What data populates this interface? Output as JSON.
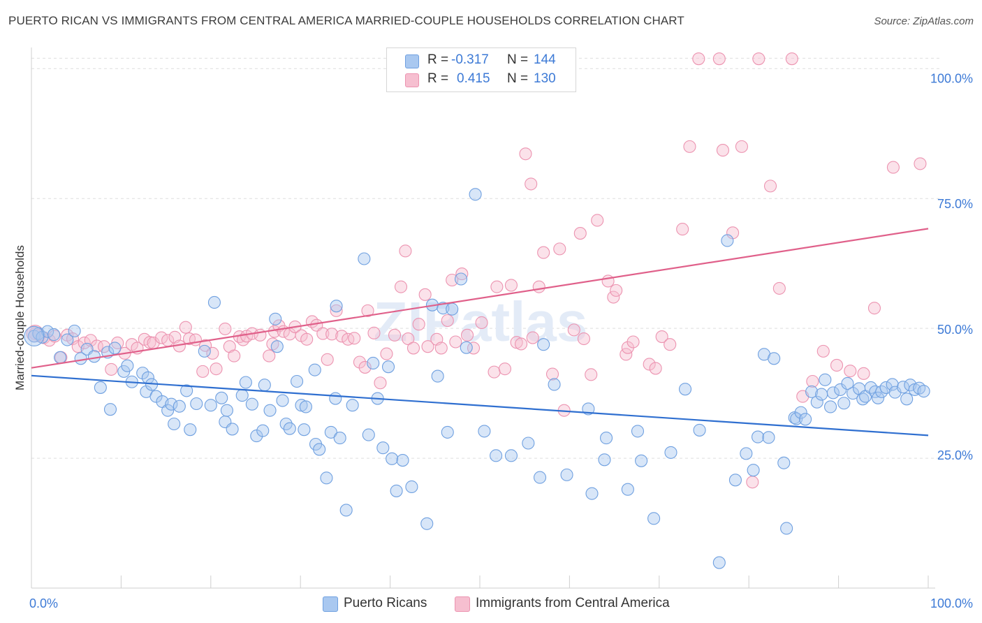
{
  "title": "PUERTO RICAN VS IMMIGRANTS FROM CENTRAL AMERICA MARRIED-COUPLE HOUSEHOLDS CORRELATION CHART",
  "source": "Source: ZipAtlas.com",
  "watermark": "ZIPatlas",
  "colors": {
    "blue_fill": "#a9c8f0",
    "blue_stroke": "#6fa0e0",
    "blue_line": "#2f6fd0",
    "pink_fill": "#f6bfd0",
    "pink_stroke": "#ec93b0",
    "pink_line": "#e0608a",
    "accent_text": "#3d7ad6"
  },
  "legend": {
    "rows": [
      {
        "r_label": "R =",
        "r_value": "-0.317",
        "n_label": "N =",
        "n_value": "144"
      },
      {
        "r_label": "R =",
        "r_value": "0.415",
        "n_label": "N =",
        "n_value": "130"
      }
    ]
  },
  "bottom_legend": {
    "series1": "Puerto Ricans",
    "series2": "Immigrants from Central America"
  },
  "chart_data": {
    "type": "scatter",
    "title": "PUERTO RICAN VS IMMIGRANTS FROM CENTRAL AMERICA MARRIED-COUPLE HOUSEHOLDS CORRELATION CHART",
    "xlabel": "",
    "ylabel": "Married-couple Households",
    "xlim": [
      0,
      100
    ],
    "ylim": [
      0,
      103
    ],
    "x_tick_labels": [
      "0.0%",
      "100.0%"
    ],
    "y_tick_labels": [
      {
        "value": 25,
        "label": "25.0%"
      },
      {
        "value": 50,
        "label": "50.0%"
      },
      {
        "value": 75,
        "label": "75.0%"
      },
      {
        "value": 100,
        "label": "100.0%"
      }
    ],
    "series": [
      {
        "name": "Puerto Ricans",
        "color": "blue",
        "R": -0.317,
        "N": 144,
        "trend": {
          "x0": 0,
          "y0": 40.9,
          "x1": 100,
          "y1": 29.4
        },
        "points": [
          [
            0.3,
            48.5
          ],
          [
            0.8,
            49
          ],
          [
            1.2,
            48.3
          ],
          [
            1.8,
            49.4
          ],
          [
            2.5,
            48.8
          ],
          [
            3.2,
            44.4
          ],
          [
            4,
            47.8
          ],
          [
            4.8,
            49.5
          ],
          [
            5.5,
            44.2
          ],
          [
            6.2,
            46
          ],
          [
            7,
            44.6
          ],
          [
            7.7,
            38.6
          ],
          [
            8.5,
            45.4
          ],
          [
            9.3,
            46.2
          ],
          [
            8.8,
            34.4
          ],
          [
            10.3,
            41.7
          ],
          [
            10.7,
            42.8
          ],
          [
            11.2,
            39.7
          ],
          [
            12.4,
            41.4
          ],
          [
            12.8,
            37.8
          ],
          [
            13,
            40.5
          ],
          [
            13.4,
            39.2
          ],
          [
            13.9,
            36.9
          ],
          [
            14.6,
            35.9
          ],
          [
            15.2,
            34.2
          ],
          [
            15.6,
            35.4
          ],
          [
            15.9,
            31.6
          ],
          [
            16.5,
            35
          ],
          [
            17.3,
            38
          ],
          [
            17.7,
            30.5
          ],
          [
            18.4,
            35.5
          ],
          [
            19.3,
            45.6
          ],
          [
            20,
            35.2
          ],
          [
            20.4,
            55
          ],
          [
            21.2,
            36.6
          ],
          [
            21.6,
            32
          ],
          [
            21.8,
            34.2
          ],
          [
            22.4,
            30.6
          ],
          [
            23.5,
            37.1
          ],
          [
            23.9,
            39.6
          ],
          [
            24.6,
            35.4
          ],
          [
            25.1,
            29.3
          ],
          [
            25.8,
            30.3
          ],
          [
            26,
            39.1
          ],
          [
            26.6,
            34.2
          ],
          [
            27.2,
            51.8
          ],
          [
            27.4,
            46.5
          ],
          [
            28,
            36.1
          ],
          [
            28.4,
            31.6
          ],
          [
            28.8,
            30.7
          ],
          [
            29.6,
            39.8
          ],
          [
            30.1,
            35.2
          ],
          [
            30.4,
            30.5
          ],
          [
            30.6,
            34.9
          ],
          [
            31.6,
            42
          ],
          [
            31.7,
            27.7
          ],
          [
            32.1,
            26.7
          ],
          [
            32.9,
            21.2
          ],
          [
            33.4,
            30
          ],
          [
            33.9,
            36.5
          ],
          [
            34,
            54.3
          ],
          [
            34.4,
            28.9
          ],
          [
            35.1,
            15
          ],
          [
            35.8,
            35.2
          ],
          [
            37.1,
            63.4
          ],
          [
            37.6,
            29.5
          ],
          [
            38.1,
            43.3
          ],
          [
            38.6,
            36.5
          ],
          [
            39.2,
            27
          ],
          [
            39.8,
            42.6
          ],
          [
            40.2,
            24.9
          ],
          [
            40.7,
            18.7
          ],
          [
            41.4,
            24.6
          ],
          [
            42.4,
            19.5
          ],
          [
            44.1,
            12.4
          ],
          [
            44.7,
            54.5
          ],
          [
            45.3,
            40.8
          ],
          [
            45.9,
            53.9
          ],
          [
            46.4,
            30
          ],
          [
            46.9,
            53.7
          ],
          [
            47.9,
            59.5
          ],
          [
            48.5,
            46.3
          ],
          [
            49.5,
            75.8
          ],
          [
            50.5,
            30.2
          ],
          [
            51.8,
            25.5
          ],
          [
            53.5,
            25.5
          ],
          [
            55.4,
            27.9
          ],
          [
            56.7,
            21.3
          ],
          [
            57.1,
            46.9
          ],
          [
            58.3,
            39.2
          ],
          [
            59.7,
            21.8
          ],
          [
            62.1,
            34.5
          ],
          [
            62.5,
            18.2
          ],
          [
            63.9,
            24.7
          ],
          [
            64.1,
            28.9
          ],
          [
            66.5,
            19
          ],
          [
            67.6,
            30.2
          ],
          [
            68,
            24.5
          ],
          [
            69.4,
            13.4
          ],
          [
            71.3,
            26.1
          ],
          [
            72.9,
            38.3
          ],
          [
            74.5,
            30.4
          ],
          [
            76.7,
            4.9
          ],
          [
            77.6,
            66.9
          ],
          [
            78.5,
            20.8
          ],
          [
            79.7,
            25.9
          ],
          [
            80.5,
            22.7
          ],
          [
            81,
            29.1
          ],
          [
            81.7,
            45
          ],
          [
            82.2,
            29
          ],
          [
            82.8,
            44.2
          ],
          [
            83.9,
            24.1
          ],
          [
            84.2,
            11.5
          ],
          [
            85.1,
            32.8
          ],
          [
            85.3,
            32.6
          ],
          [
            85.8,
            33.8
          ],
          [
            86.3,
            32.5
          ],
          [
            87,
            37.8
          ],
          [
            87.6,
            35.8
          ],
          [
            88.1,
            37.3
          ],
          [
            88.5,
            40.1
          ],
          [
            89.1,
            34.9
          ],
          [
            89.4,
            37.6
          ],
          [
            90.2,
            38.2
          ],
          [
            90.6,
            35.6
          ],
          [
            91,
            39.4
          ],
          [
            91.6,
            37.5
          ],
          [
            92.3,
            38.4
          ],
          [
            92.7,
            36.4
          ],
          [
            93,
            36.9
          ],
          [
            93.6,
            38.6
          ],
          [
            94.1,
            37.8
          ],
          [
            94.4,
            36.6
          ],
          [
            94.8,
            37.8
          ],
          [
            95.3,
            38.6
          ],
          [
            96,
            39.2
          ],
          [
            96.3,
            37.7
          ],
          [
            97.2,
            38.7
          ],
          [
            97.6,
            36.4
          ],
          [
            98,
            39.1
          ],
          [
            98.5,
            38.2
          ],
          [
            99,
            38.5
          ],
          [
            99.5,
            37.9
          ]
        ]
      },
      {
        "name": "Immigrants from Central America",
        "color": "pink",
        "R": 0.415,
        "N": 130,
        "trend": {
          "x0": 0,
          "y0": 42.4,
          "x1": 100,
          "y1": 69.2
        },
        "points": [
          [
            0.4,
            49
          ],
          [
            0.9,
            48.7
          ],
          [
            1.4,
            48.2
          ],
          [
            2,
            47.7
          ],
          [
            2.6,
            48.5
          ],
          [
            3.3,
            44.4
          ],
          [
            4,
            48.7
          ],
          [
            4.6,
            48
          ],
          [
            5.2,
            46.5
          ],
          [
            5.9,
            47.2
          ],
          [
            6.6,
            47.7
          ],
          [
            7.3,
            46.6
          ],
          [
            8.1,
            46.5
          ],
          [
            8.9,
            42.1
          ],
          [
            9.6,
            47.2
          ],
          [
            10.4,
            45.2
          ],
          [
            11.2,
            46.9
          ],
          [
            11.8,
            46.2
          ],
          [
            12.6,
            47.9
          ],
          [
            13.2,
            47.3
          ],
          [
            13.6,
            47.2
          ],
          [
            14.5,
            48.2
          ],
          [
            15.2,
            47.7
          ],
          [
            16,
            48.3
          ],
          [
            16.5,
            46.6
          ],
          [
            17.2,
            50.2
          ],
          [
            17.6,
            48
          ],
          [
            18.3,
            47.8
          ],
          [
            19.1,
            41.7
          ],
          [
            19.4,
            46.7
          ],
          [
            20.2,
            45.2
          ],
          [
            20.6,
            42.2
          ],
          [
            21.6,
            49.9
          ],
          [
            22.1,
            46.5
          ],
          [
            22.6,
            44.7
          ],
          [
            23.2,
            48.4
          ],
          [
            23.6,
            47.8
          ],
          [
            24,
            48.5
          ],
          [
            24.6,
            49
          ],
          [
            25.5,
            48.7
          ],
          [
            26.5,
            44.7
          ],
          [
            26.9,
            47
          ],
          [
            27.1,
            49.4
          ],
          [
            27.6,
            50.5
          ],
          [
            28.1,
            49.4
          ],
          [
            28.8,
            48.9
          ],
          [
            29.4,
            50.3
          ],
          [
            30.1,
            48.6
          ],
          [
            30.7,
            47.9
          ],
          [
            31.3,
            51.3
          ],
          [
            31.8,
            50.6
          ],
          [
            32.5,
            49
          ],
          [
            33,
            44
          ],
          [
            33.5,
            48.9
          ],
          [
            34,
            53.4
          ],
          [
            34.6,
            48.5
          ],
          [
            35.3,
            47.9
          ],
          [
            36,
            48.1
          ],
          [
            36.6,
            43.5
          ],
          [
            37.2,
            42.5
          ],
          [
            37.5,
            53.4
          ],
          [
            38.2,
            49.1
          ],
          [
            38.9,
            39.5
          ],
          [
            39.6,
            45.1
          ],
          [
            40.5,
            48.7
          ],
          [
            41.2,
            58
          ],
          [
            41.7,
            64.9
          ],
          [
            42,
            48
          ],
          [
            42.6,
            46.2
          ],
          [
            43.2,
            50.8
          ],
          [
            43.9,
            56.5
          ],
          [
            44.2,
            46.5
          ],
          [
            45.2,
            47.9
          ],
          [
            45.7,
            46.2
          ],
          [
            46.4,
            51.5
          ],
          [
            46.9,
            59.3
          ],
          [
            47.3,
            47.4
          ],
          [
            48,
            60.5
          ],
          [
            48.6,
            48.7
          ],
          [
            49.3,
            46.2
          ],
          [
            50.2,
            51.1
          ],
          [
            51.6,
            41.6
          ],
          [
            51.9,
            58
          ],
          [
            52.8,
            42.2
          ],
          [
            53.5,
            58.3
          ],
          [
            54.1,
            47.3
          ],
          [
            54.6,
            47
          ],
          [
            55.1,
            83.6
          ],
          [
            55.7,
            77.8
          ],
          [
            55.9,
            48.2
          ],
          [
            56.6,
            58
          ],
          [
            57.1,
            64.6
          ],
          [
            58.1,
            41.2
          ],
          [
            58.9,
            65.3
          ],
          [
            59.4,
            34.2
          ],
          [
            60.5,
            49.7
          ],
          [
            61.2,
            68.3
          ],
          [
            61.6,
            48
          ],
          [
            62.4,
            41.1
          ],
          [
            63.1,
            70.8
          ],
          [
            64.3,
            59.1
          ],
          [
            64.9,
            56
          ],
          [
            65.2,
            57.3
          ],
          [
            66.3,
            45
          ],
          [
            66.5,
            46.3
          ],
          [
            67.1,
            47.4
          ],
          [
            68.9,
            43.1
          ],
          [
            69.6,
            42.3
          ],
          [
            70.3,
            48.4
          ],
          [
            71.2,
            46.9
          ],
          [
            72.6,
            69.1
          ],
          [
            73.4,
            85
          ],
          [
            74.4,
            101.9
          ],
          [
            76.7,
            101.9
          ],
          [
            77.1,
            84.3
          ],
          [
            78.2,
            68.4
          ],
          [
            79.2,
            85
          ],
          [
            80.4,
            20.4
          ],
          [
            81.1,
            101.9
          ],
          [
            82.4,
            77.4
          ],
          [
            83.4,
            57.7
          ],
          [
            84.8,
            101.9
          ],
          [
            86,
            36.9
          ],
          [
            87.1,
            39.8
          ],
          [
            88.3,
            45.6
          ],
          [
            89.8,
            42.9
          ],
          [
            91.3,
            41.8
          ],
          [
            92.8,
            41.3
          ],
          [
            94,
            53.9
          ],
          [
            96.1,
            81
          ],
          [
            99.1,
            81.7
          ]
        ]
      }
    ]
  }
}
